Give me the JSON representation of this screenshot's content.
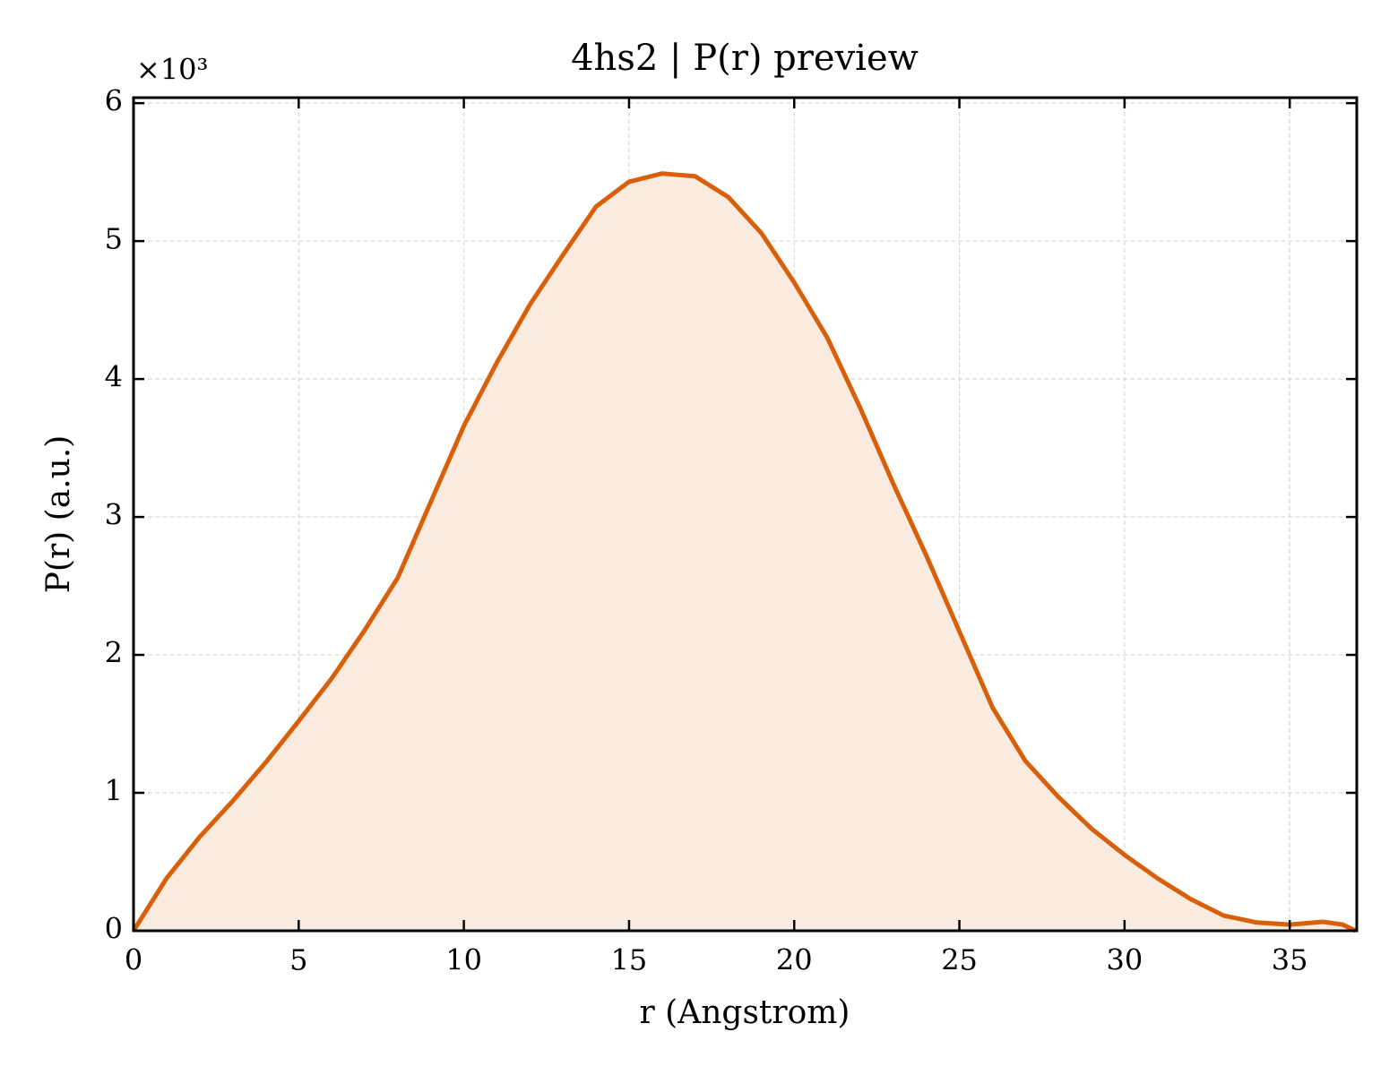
{
  "chart_data": {
    "type": "line",
    "title": "4hs2 | P(r) preview",
    "x_label": "r (Angstrom)",
    "y_label": "P(r) (a.u.)",
    "y_multiplier": "×10³",
    "x": [
      0,
      1,
      2,
      3,
      4,
      5,
      6,
      7,
      8,
      9,
      10,
      11,
      12,
      13,
      14,
      15,
      16,
      17,
      18,
      19,
      20,
      21,
      22,
      23,
      24,
      25,
      26,
      27,
      28,
      29,
      30,
      31,
      32,
      33,
      34,
      35,
      36,
      36.6,
      37
    ],
    "series": [
      {
        "name": "P(r)",
        "color": "#d9600a",
        "fill": "#f9ebe0",
        "values": [
          0,
          0.38,
          0.68,
          0.94,
          1.22,
          1.52,
          1.83,
          2.18,
          2.56,
          3.11,
          3.66,
          4.12,
          4.54,
          4.9,
          5.25,
          5.43,
          5.49,
          5.47,
          5.32,
          5.06,
          4.7,
          4.3,
          3.79,
          3.24,
          2.72,
          2.17,
          1.62,
          1.23,
          0.97,
          0.74,
          0.55,
          0.38,
          0.23,
          0.11,
          0.06,
          0.045,
          0.065,
          0.045,
          0
        ]
      }
    ],
    "xlim": [
      0,
      37.03
    ],
    "ylim": [
      0,
      6.04
    ],
    "xticks": [
      0,
      5,
      10,
      15,
      20,
      25,
      30,
      35
    ],
    "yticks": [
      0,
      1,
      2,
      3,
      4,
      5,
      6
    ],
    "grid": true
  }
}
